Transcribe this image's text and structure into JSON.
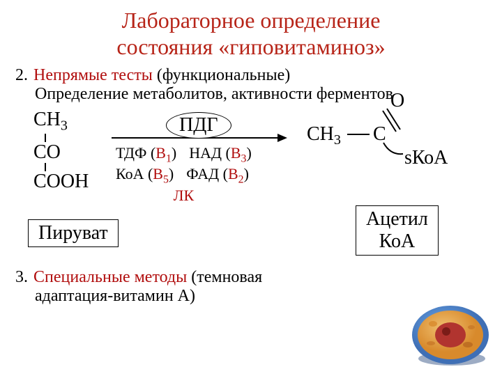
{
  "colors": {
    "title": "#b72418",
    "text": "#000000",
    "highlight": "#b10e0e",
    "cell_membrane_outer": "#6aa6e6",
    "cell_membrane_inner": "#3f6fb5",
    "cytoplasm_outer": "#f0c070",
    "cytoplasm_inner": "#d88a2c",
    "nucleus": "#b1342f",
    "nucleolus": "#7a1c18",
    "shadow": "#3b5a8a"
  },
  "typography": {
    "title_size": 32,
    "body_size": 24,
    "chem_size": 28,
    "cofactor_size": 22
  },
  "title": {
    "line1": "Лабораторное определение",
    "line2": "состояния «гиповитаминоз»"
  },
  "item2": {
    "num": "2.",
    "highlight": "Непрямые тесты ",
    "rest": "(функциональные)",
    "sub": "Определение метаболитов, активности ферментов"
  },
  "item3": {
    "num": "3.",
    "highlight": "Специальные методы ",
    "rest": "(темновая",
    "sub": "адаптация-витамин А)"
  },
  "diagram": {
    "pyruvate": {
      "l1": "СН",
      "l1_sub": "3",
      "l2": "СО",
      "l3": "СООН"
    },
    "pyruvate_label": "Пируват",
    "enzyme": "ПДГ",
    "cofactors": {
      "tdf_pre": "ТДФ (",
      "tdf_v": "В",
      "tdf_sub": "1",
      "tdf_post": ")",
      "koa_pre": "КоА (",
      "koa_v": "В",
      "koa_sub": "5",
      "koa_post": ")",
      "nad_pre": "НАД (",
      "nad_v": "В",
      "nad_sub": "3",
      "nad_post": ")",
      "fad_pre": "ФАД (",
      "fad_v": "В",
      "fad_sub": "2",
      "fad_post": ")",
      "lk": "ЛК"
    },
    "acetyl": {
      "ch3": "СН",
      "ch3_sub": "3",
      "c": "С",
      "o": "О",
      "skoa": "sКоА"
    },
    "acetyl_label_l1": "Ацетил",
    "acetyl_label_l2": "КоА"
  }
}
